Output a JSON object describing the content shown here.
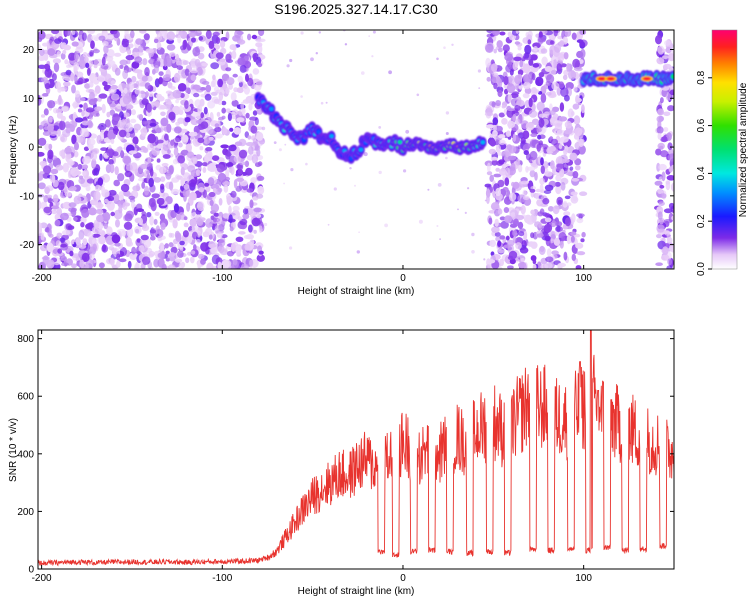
{
  "figure_title": "S196.2025.327.14.17.C30",
  "chart_data": [
    {
      "type": "heatmap",
      "title": "S196.2025.327.14.17.C30",
      "xlabel": "Height of straight line (km)",
      "ylabel": "Frequency (Hz)",
      "xlim": [
        -202,
        150
      ],
      "ylim": [
        -25,
        24
      ],
      "xticks": [
        -200,
        -100,
        0,
        100
      ],
      "yticks": [
        20,
        10,
        0,
        -10,
        -20
      ],
      "colorbar": {
        "label": "Normalized spectral amplitude",
        "range": [
          0,
          1
        ],
        "ticks": [
          "0.0",
          "0.2",
          "0.4",
          "0.6",
          "0.8"
        ],
        "tick_values": [
          0,
          0.2,
          0.4,
          0.6,
          0.8
        ]
      },
      "noise_regions": [
        {
          "x_range": [
            -202,
            -78
          ],
          "y_range": [
            -25,
            24
          ],
          "level": 0.15
        },
        {
          "x_range": [
            47,
            100
          ],
          "y_range": [
            -25,
            24
          ],
          "level": 0.15
        },
        {
          "x_range": [
            141,
            150
          ],
          "y_range": [
            -25,
            24
          ],
          "level": 0.1
        }
      ],
      "trace": {
        "name": "dominant frequency",
        "x": [
          -80,
          -75,
          -70,
          -65,
          -60,
          -55,
          -50,
          -45,
          -40,
          -35,
          -30,
          -25,
          -20,
          -15,
          -10,
          -5,
          0,
          5,
          10,
          15,
          20,
          25,
          30,
          35,
          40,
          45
        ],
        "y": [
          10,
          8,
          6,
          4,
          2,
          2,
          4,
          2,
          2,
          -1,
          -2,
          -1,
          2,
          1,
          0,
          1,
          0,
          1,
          0,
          0,
          0,
          0,
          0,
          0,
          0,
          1
        ],
        "amplitude": [
          0.35,
          0.35,
          0.4,
          0.45,
          0.4,
          0.4,
          0.45,
          0.45,
          0.4,
          0.35,
          0.35,
          0.35,
          0.35,
          0.45,
          0.45,
          0.5,
          0.7,
          0.75,
          0.8,
          0.9,
          0.85,
          0.8,
          0.9,
          0.75,
          0.6,
          0.45
        ]
      },
      "tone": {
        "name": "upper tone",
        "x_range": [
          100,
          150
        ],
        "y": 14,
        "peaks_x": [
          110,
          115,
          135
        ],
        "peak_amplitude": 0.95
      }
    },
    {
      "type": "line",
      "xlabel": "Height of straight line (km)",
      "ylabel": "SNR (10 * v/v)",
      "xlim": [
        -202,
        150
      ],
      "ylim": [
        0,
        830
      ],
      "xticks": [
        -200,
        -100,
        0,
        100
      ],
      "yticks": [
        0,
        200,
        400,
        600,
        800
      ],
      "series": [
        {
          "name": "SNR",
          "color": "#e8332e",
          "x": [
            -202,
            -190,
            -180,
            -170,
            -160,
            -150,
            -140,
            -130,
            -120,
            -110,
            -100,
            -90,
            -80,
            -75,
            -70,
            -65,
            -60,
            -55,
            -50,
            -45,
            -40,
            -35,
            -30,
            -25,
            -20,
            -15,
            -10,
            -5,
            0,
            5,
            10,
            15,
            20,
            25,
            30,
            35,
            40,
            45,
            50,
            55,
            60,
            65,
            70,
            75,
            80,
            85,
            90,
            95,
            100,
            105,
            110,
            115,
            120,
            125,
            130,
            135,
            140,
            145,
            150
          ],
          "values": [
            20,
            22,
            25,
            22,
            24,
            25,
            24,
            25,
            23,
            25,
            26,
            27,
            30,
            40,
            60,
            110,
            160,
            210,
            250,
            280,
            300,
            330,
            320,
            360,
            380,
            350,
            370,
            400,
            440,
            420,
            390,
            420,
            400,
            440,
            460,
            430,
            470,
            500,
            520,
            480,
            500,
            540,
            580,
            560,
            560,
            530,
            520,
            540,
            560,
            600,
            540,
            520,
            500,
            490,
            470,
            450,
            440,
            420,
            400
          ],
          "dropouts": [
            {
              "x": -12,
              "depth": 50
            },
            {
              "x": -4,
              "depth": 40
            },
            {
              "x": 6,
              "depth": 50
            },
            {
              "x": 16,
              "depth": 55
            },
            {
              "x": 26,
              "depth": 50
            },
            {
              "x": 37,
              "depth": 45
            },
            {
              "x": 48,
              "depth": 50
            },
            {
              "x": 58,
              "depth": 45
            },
            {
              "x": 72,
              "depth": 60
            },
            {
              "x": 82,
              "depth": 55
            },
            {
              "x": 93,
              "depth": 60
            },
            {
              "x": 103,
              "depth": 55
            },
            {
              "x": 113,
              "depth": 65
            },
            {
              "x": 123,
              "depth": 55
            },
            {
              "x": 133,
              "depth": 60
            },
            {
              "x": 144,
              "depth": 70
            }
          ],
          "spikes": [
            {
              "x": 98,
              "value": 720
            },
            {
              "x": 104,
              "value": 830
            },
            {
              "x": 108,
              "value": 620
            }
          ]
        }
      ]
    }
  ]
}
